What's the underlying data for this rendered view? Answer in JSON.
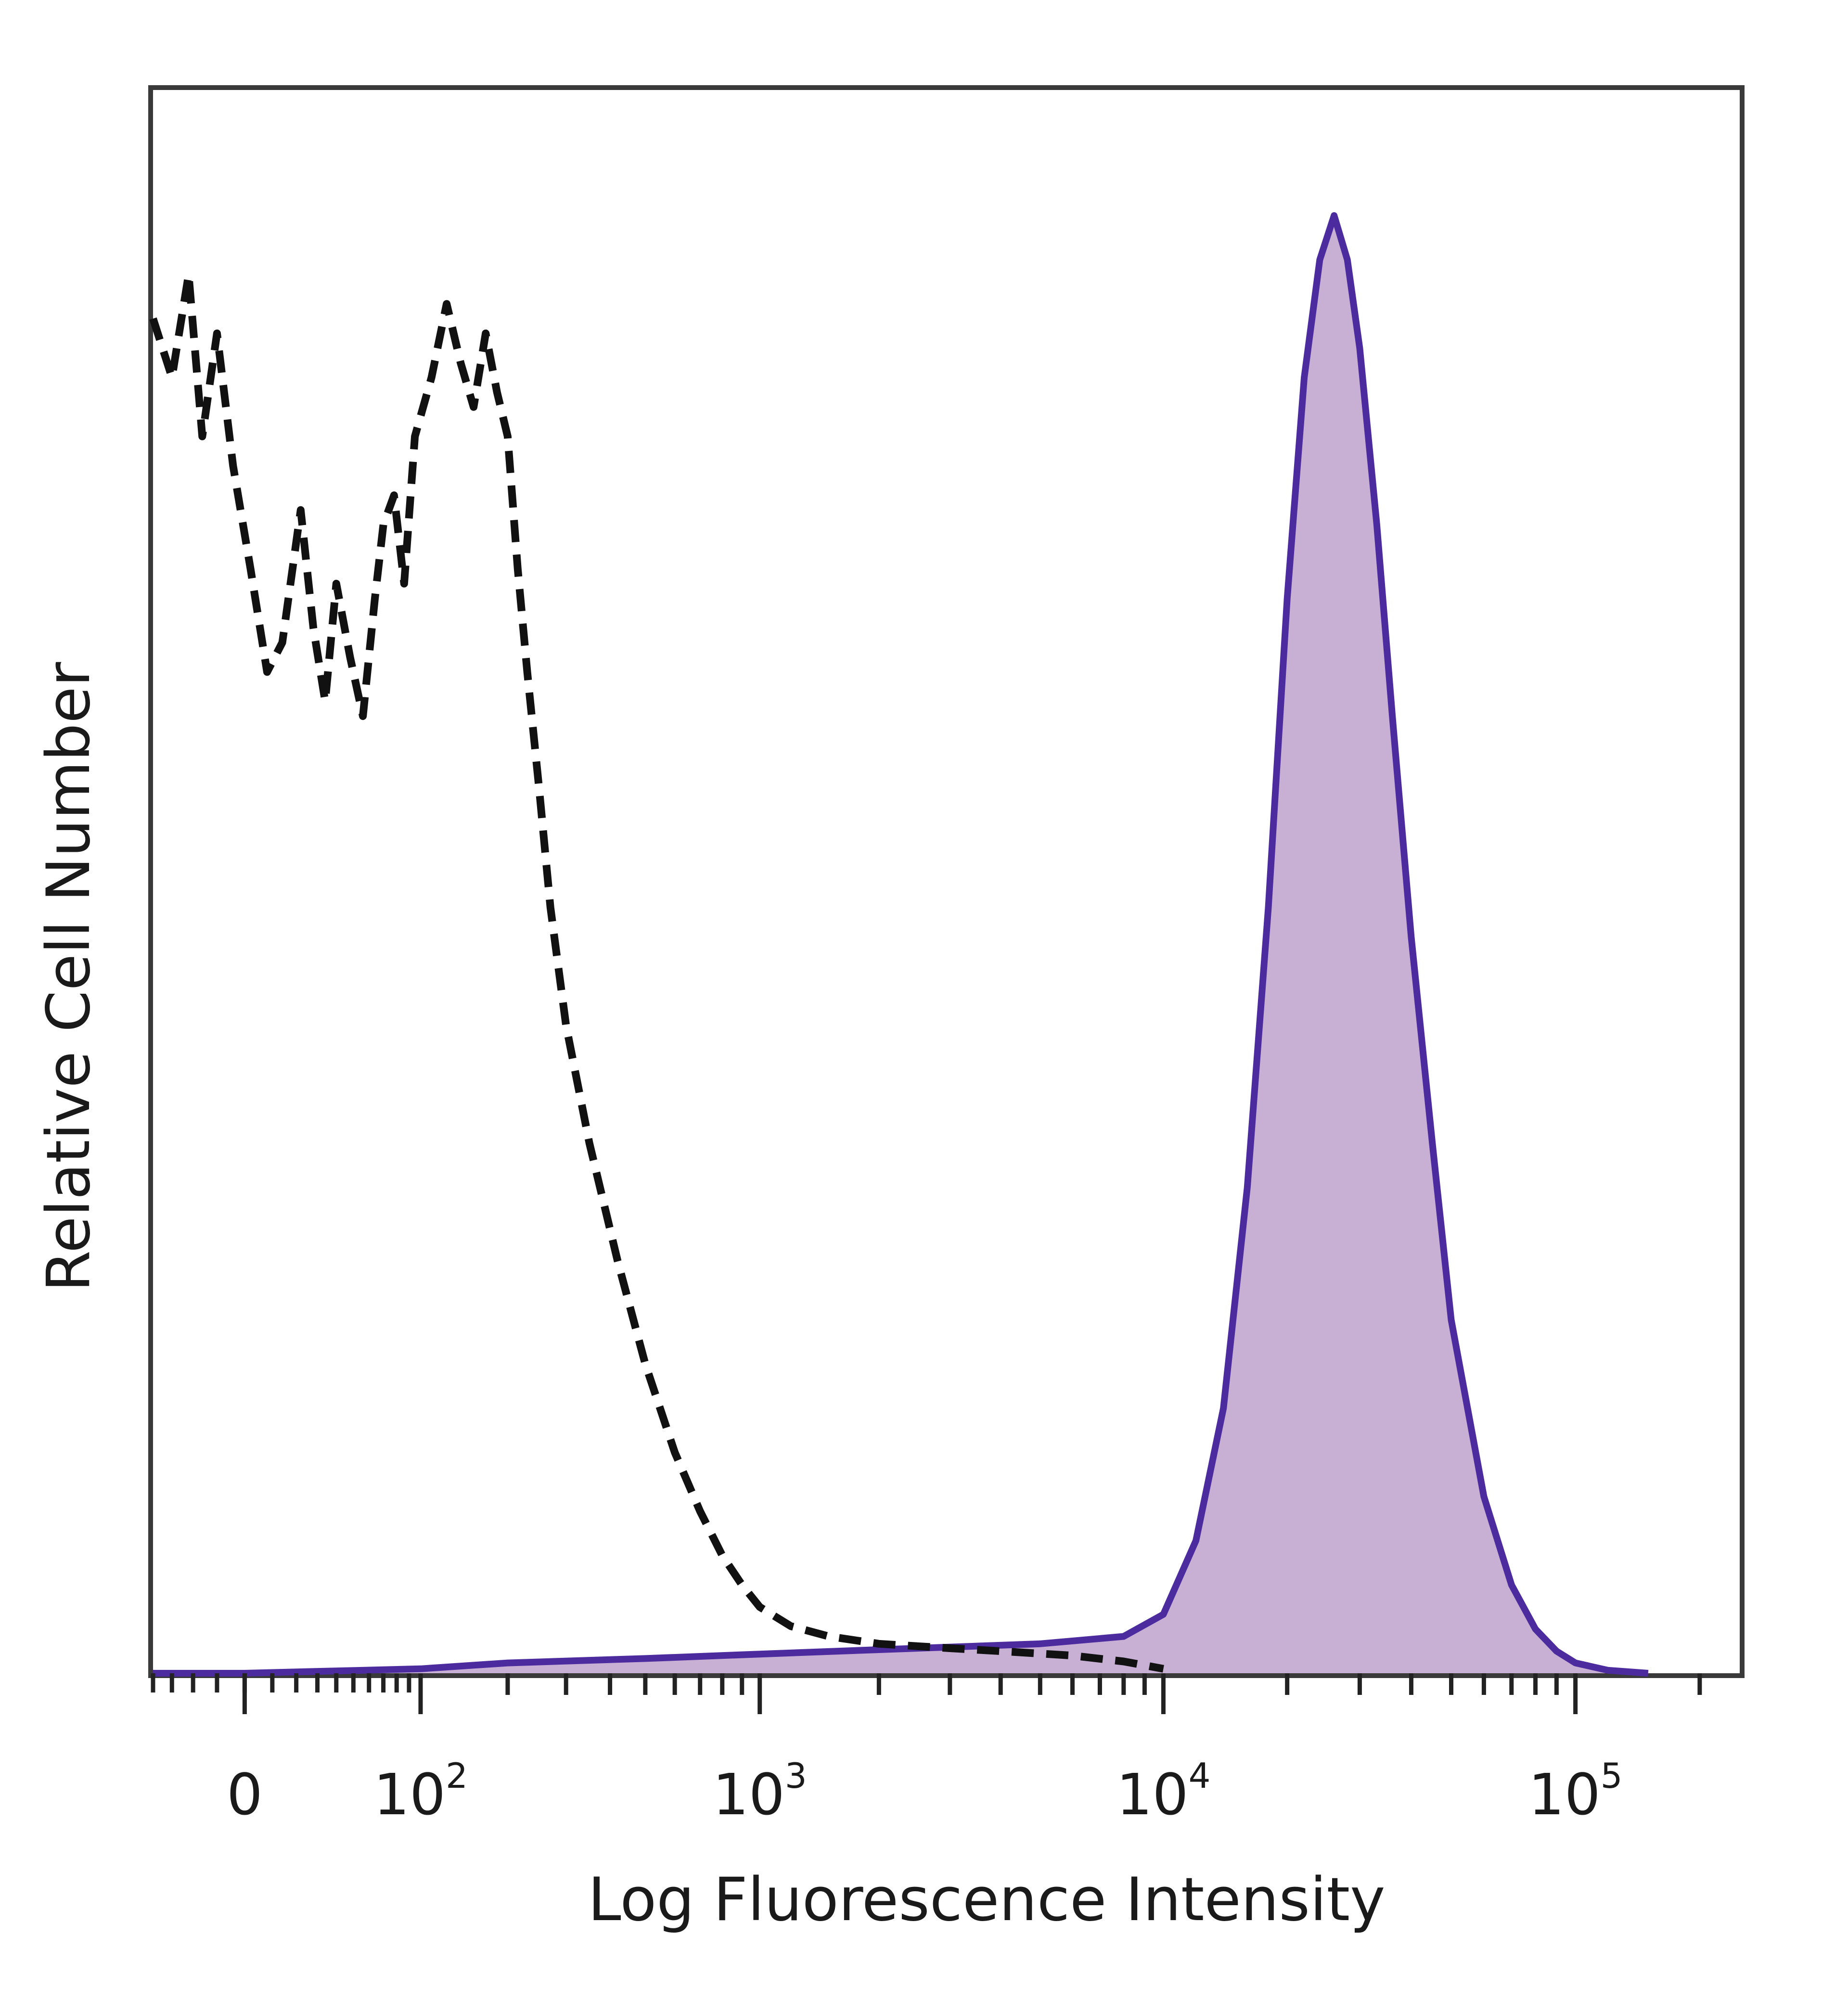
{
  "chart_data": {
    "type": "area",
    "xlabel": "Log Fluorescence Intensity",
    "ylabel": "Relative Cell Number",
    "x_scale": "biexponential",
    "x_ticks": [
      {
        "value": 0,
        "label": "0"
      },
      {
        "value": 100,
        "base": "10",
        "exp": "2"
      },
      {
        "value": 1000,
        "base": "10",
        "exp": "3"
      },
      {
        "value": 10000,
        "base": "10",
        "exp": "4"
      },
      {
        "value": 100000,
        "base": "10",
        "exp": "5"
      }
    ],
    "xlim": [
      -40,
      250000
    ],
    "ylim": [
      0,
      100
    ],
    "grid": false,
    "legend": "none",
    "series": [
      {
        "style": "dashed",
        "color": "#111111",
        "filled": false,
        "x": [
          -40,
          -30,
          -22,
          -16,
          -10,
          -4,
          2,
          8,
          14,
          22,
          28,
          34,
          40,
          48,
          56,
          64,
          70,
          78,
          86,
          95,
          110,
          125,
          140,
          155,
          170,
          185,
          200,
          215,
          230,
          250,
          270,
          300,
          350,
          420,
          500,
          600,
          700,
          800,
          900,
          1000,
          1200,
          1500,
          2000,
          3000,
          4000,
          6000,
          8000,
          10000
        ],
        "y": [
          92,
          88,
          95,
          84,
          91,
          82,
          75,
          68,
          70,
          79,
          71,
          66,
          74,
          69,
          65,
          73,
          78,
          80,
          74,
          84,
          88,
          93,
          89,
          86,
          91,
          87,
          84,
          75,
          68,
          60,
          52,
          44,
          36,
          28,
          21,
          15,
          11,
          8,
          6,
          4.5,
          3.2,
          2.5,
          2.0,
          1.7,
          1.5,
          1.2,
          0.8,
          0.3
        ]
      },
      {
        "style": "solid",
        "color": "#4b2b9e",
        "filled": true,
        "fill": "#c8b0d4",
        "x": [
          -40,
          0,
          100,
          200,
          500,
          1000,
          2000,
          5000,
          8000,
          10000,
          12000,
          14000,
          16000,
          18000,
          20000,
          22000,
          24000,
          26000,
          28000,
          30000,
          33000,
          36000,
          40000,
          45000,
          50000,
          60000,
          70000,
          80000,
          90000,
          100000,
          120000,
          150000
        ],
        "y": [
          0,
          0,
          0.3,
          0.7,
          1.0,
          1.3,
          1.6,
          2.0,
          2.5,
          4.0,
          9.0,
          18.0,
          33.0,
          52.0,
          73.0,
          88.0,
          96.0,
          99.0,
          96.0,
          90.0,
          78.0,
          65.0,
          50.0,
          36.0,
          24.0,
          12.0,
          6.0,
          3.0,
          1.5,
          0.7,
          0.2,
          0
        ]
      }
    ]
  }
}
